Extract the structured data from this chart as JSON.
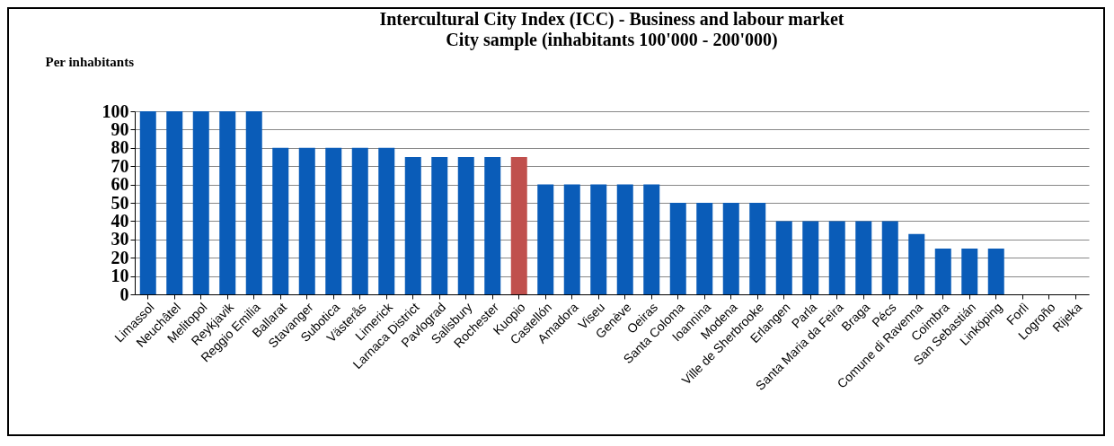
{
  "chart_data": {
    "type": "bar",
    "title": "Intercultural City Index (ICC) - Business and labour market",
    "subtitle": "City sample (inhabitants 100'000 - 200'000)",
    "ylabel": "Per inhabitants",
    "categories": [
      "Limassol",
      "Neuchâtel",
      "Melitopol",
      "Reykjavik",
      "Reggio Emilia",
      "Ballarat",
      "Stavanger",
      "Subotica",
      "Västerås",
      "Limerick",
      "Larnaca District",
      "Pavlograd",
      "Salisbury",
      "Rochester",
      "Kuopio",
      "Castellón",
      "Amadora",
      "Viseu",
      "Genève",
      "Oeiras",
      "Santa Coloma",
      "Ioannina",
      "Modena",
      "Ville de Sherbrooke",
      "Erlangen",
      "Parla",
      "Santa Maria da Feira",
      "Braga",
      "Pécs",
      "Comune di Ravenna",
      "Coimbra",
      "San Sebastián",
      "Linköping",
      "Forlì",
      "Logroño",
      "Rijeka"
    ],
    "values": [
      100,
      100,
      100,
      100,
      100,
      80,
      80,
      80,
      80,
      80,
      75,
      75,
      75,
      75,
      75,
      60,
      60,
      60,
      60,
      60,
      50,
      50,
      50,
      50,
      40,
      40,
      40,
      40,
      40,
      33,
      25,
      25,
      25,
      0,
      0,
      0
    ],
    "colors": [
      "#0a5cb8",
      "#0a5cb8",
      "#0a5cb8",
      "#0a5cb8",
      "#0a5cb8",
      "#0a5cb8",
      "#0a5cb8",
      "#0a5cb8",
      "#0a5cb8",
      "#0a5cb8",
      "#0a5cb8",
      "#0a5cb8",
      "#0a5cb8",
      "#0a5cb8",
      "#c0504d",
      "#0a5cb8",
      "#0a5cb8",
      "#0a5cb8",
      "#0a5cb8",
      "#0a5cb8",
      "#0a5cb8",
      "#0a5cb8",
      "#0a5cb8",
      "#0a5cb8",
      "#0a5cb8",
      "#0a5cb8",
      "#0a5cb8",
      "#0a5cb8",
      "#0a5cb8",
      "#0a5cb8",
      "#0a5cb8",
      "#0a5cb8",
      "#0a5cb8",
      "#0a5cb8",
      "#0a5cb8",
      "#0a5cb8"
    ],
    "ylim": [
      0,
      100
    ],
    "yticks": [
      0,
      10,
      20,
      30,
      40,
      50,
      60,
      70,
      80,
      90,
      100
    ],
    "grid": "y",
    "legend": false
  }
}
